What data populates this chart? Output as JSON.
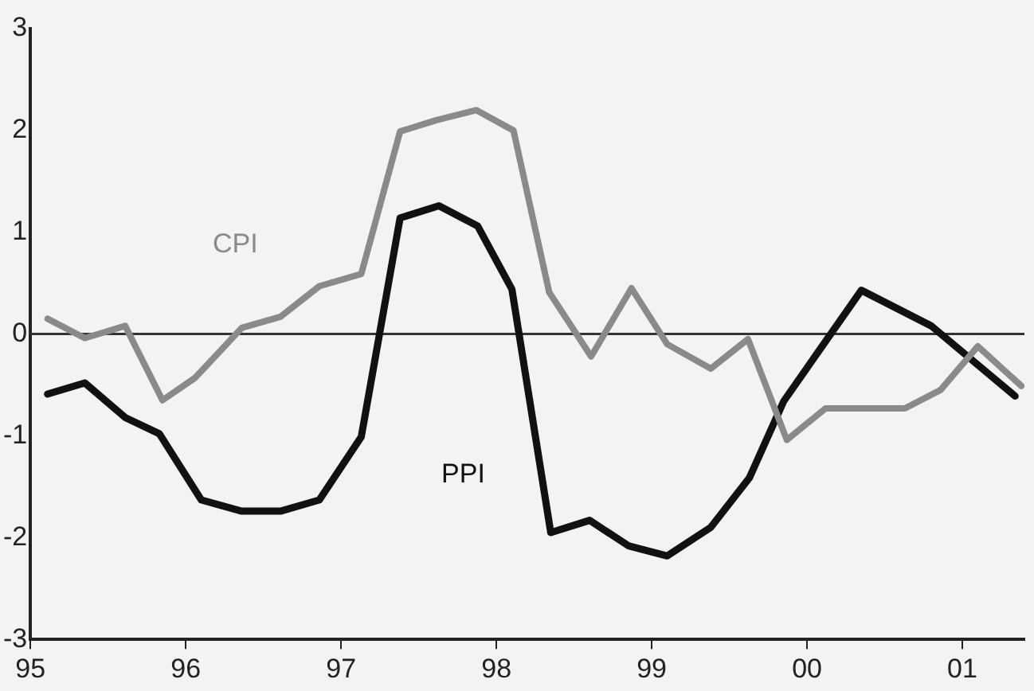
{
  "chart_data": {
    "type": "line",
    "xlim": [
      1995,
      2001.4
    ],
    "xticks": [
      {
        "value": 1995,
        "label": "95"
      },
      {
        "value": 1996,
        "label": "96"
      },
      {
        "value": 1997,
        "label": "97"
      },
      {
        "value": 1998,
        "label": "98"
      },
      {
        "value": 1999,
        "label": "99"
      },
      {
        "value": 2000,
        "label": "00"
      },
      {
        "value": 2001,
        "label": "01"
      }
    ],
    "ylim": [
      -3,
      3
    ],
    "yticks": [
      -3,
      -2,
      -1,
      0,
      1,
      2,
      3
    ],
    "grid": false,
    "legend": false,
    "marker": "none",
    "line_style": "solid",
    "ref_lines": [
      {
        "axis": "y",
        "value": 0,
        "color": "#333333"
      }
    ],
    "series": [
      {
        "name": "CPI",
        "color": "#8a8a8a",
        "x": [
          1995.11,
          1995.35,
          1995.61,
          1995.85,
          1996.06,
          1996.36,
          1996.61,
          1996.86,
          1997.13,
          1997.38,
          1997.61,
          1997.87,
          1998.11,
          1998.34,
          1998.61,
          1998.87,
          1999.1,
          1999.38,
          1999.62,
          1999.87,
          2000.12,
          2000.63,
          2000.86,
          2001.1,
          2001.38
        ],
        "values": [
          0.15,
          -0.04,
          0.08,
          -0.65,
          -0.43,
          0.06,
          0.17,
          0.47,
          0.59,
          1.99,
          2.1,
          2.2,
          2.0,
          0.41,
          -0.22,
          0.45,
          -0.1,
          -0.34,
          -0.05,
          -1.04,
          -0.73,
          -0.73,
          -0.55,
          -0.12,
          -0.51
        ]
      },
      {
        "name": "PPI",
        "color": "#111111",
        "x": [
          1995.11,
          1995.35,
          1995.61,
          1995.83,
          1996.1,
          1996.36,
          1996.61,
          1996.86,
          1997.13,
          1997.38,
          1997.63,
          1997.88,
          1998.1,
          1998.35,
          1998.6,
          1998.85,
          1999.1,
          1999.38,
          1999.63,
          1999.85,
          2000.35,
          2000.8,
          2001.34
        ],
        "values": [
          -0.59,
          -0.48,
          -0.82,
          -0.98,
          -1.63,
          -1.74,
          -1.74,
          -1.63,
          -1.01,
          1.14,
          1.26,
          1.06,
          0.44,
          -1.95,
          -1.83,
          -2.08,
          -2.18,
          -1.9,
          -1.41,
          -0.66,
          0.43,
          0.08,
          -0.61
        ]
      }
    ]
  }
}
